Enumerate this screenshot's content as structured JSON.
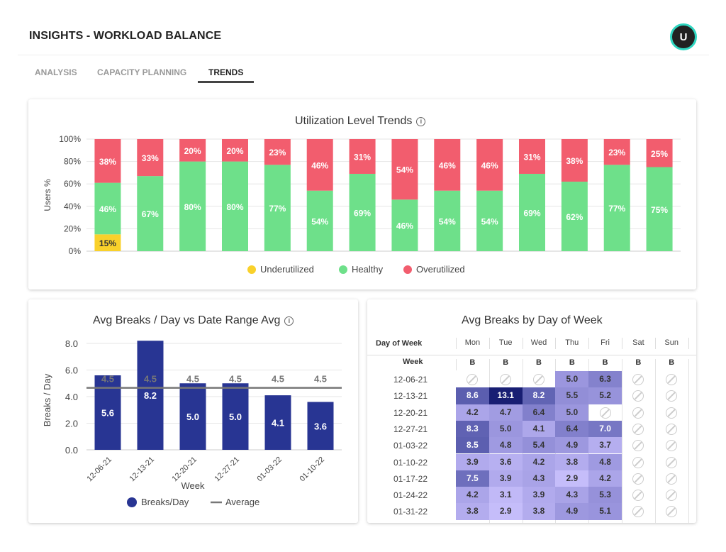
{
  "header": {
    "title": "INSIGHTS - WORKLOAD BALANCE",
    "avatar_initial": "U"
  },
  "tabs": [
    {
      "label": "ANALYSIS"
    },
    {
      "label": "CAPACITY PLANNING"
    },
    {
      "label": "TRENDS",
      "active": true
    }
  ],
  "colors": {
    "underutilized": "#f9d12b",
    "healthy": "#6ee08a",
    "overutilized": "#f25d6e",
    "bars": "#283593",
    "average": "#777777",
    "accent": "#2fd6c0"
  },
  "chart_data": [
    {
      "type": "bar",
      "stacked": true,
      "title": "Utilization Level Trends",
      "ylabel": "Users %",
      "ylim": [
        0,
        100
      ],
      "yticks": [
        "0%",
        "20%",
        "40%",
        "60%",
        "80%",
        "100%"
      ],
      "legend_position": "bottom",
      "grid": true,
      "series": [
        {
          "name": "Underutilized",
          "values": [
            15,
            0,
            0,
            0,
            0,
            0,
            0,
            0,
            0,
            0,
            0,
            0,
            0,
            0
          ]
        },
        {
          "name": "Healthy",
          "values": [
            46,
            67,
            80,
            80,
            77,
            54,
            69,
            46,
            54,
            54,
            69,
            62,
            77,
            75
          ]
        },
        {
          "name": "Overutilized",
          "values": [
            38,
            33,
            20,
            20,
            23,
            46,
            31,
            54,
            46,
            46,
            31,
            38,
            23,
            25
          ]
        }
      ]
    },
    {
      "type": "bar",
      "title": "Avg Breaks / Day vs Date Range Avg",
      "xlabel": "Week",
      "ylabel": "Breaks / Day",
      "ylim": [
        0,
        9
      ],
      "yticks": [
        "0.0",
        "2.0",
        "4.0",
        "6.0",
        "8.0"
      ],
      "grid": true,
      "legend_position": "bottom",
      "categories": [
        "12-06-21",
        "12-13-21",
        "12-20-21",
        "12-27-21",
        "01-03-22",
        "01-10-22"
      ],
      "series": [
        {
          "name": "Breaks/Day",
          "type": "bar",
          "values": [
            5.6,
            8.2,
            5.0,
            5.0,
            4.1,
            3.6
          ]
        },
        {
          "name": "Average",
          "type": "line",
          "values": [
            4.5,
            4.5,
            4.5,
            4.5,
            4.5,
            4.5
          ]
        }
      ]
    },
    {
      "type": "heatmap",
      "title": "Avg Breaks by Day of Week",
      "row_header": "Week",
      "col_header": "Day of Week",
      "sub_header": "B",
      "columns": [
        "Mon",
        "Tue",
        "Wed",
        "Thu",
        "Fri",
        "Sat",
        "Sun"
      ],
      "rows": [
        "12-06-21",
        "12-13-21",
        "12-20-21",
        "12-27-21",
        "01-03-22",
        "01-10-22",
        "01-17-22",
        "01-24-22",
        "01-31-22"
      ],
      "values": [
        [
          null,
          null,
          null,
          5.0,
          6.3,
          null,
          null
        ],
        [
          8.6,
          13.1,
          8.2,
          5.5,
          5.2,
          null,
          null
        ],
        [
          4.2,
          4.7,
          6.4,
          5.0,
          null,
          null,
          null
        ],
        [
          8.3,
          5.0,
          4.1,
          6.4,
          7.0,
          null,
          null
        ],
        [
          8.5,
          4.8,
          5.4,
          4.9,
          3.7,
          null,
          null
        ],
        [
          3.9,
          3.6,
          4.2,
          3.8,
          4.8,
          null,
          null
        ],
        [
          7.5,
          3.9,
          4.3,
          2.9,
          4.2,
          null,
          null
        ],
        [
          4.2,
          3.1,
          3.9,
          4.3,
          5.3,
          null,
          null
        ],
        [
          3.8,
          2.9,
          3.8,
          4.9,
          5.1,
          null,
          null
        ]
      ],
      "null_icon": "no-data-icon"
    }
  ]
}
